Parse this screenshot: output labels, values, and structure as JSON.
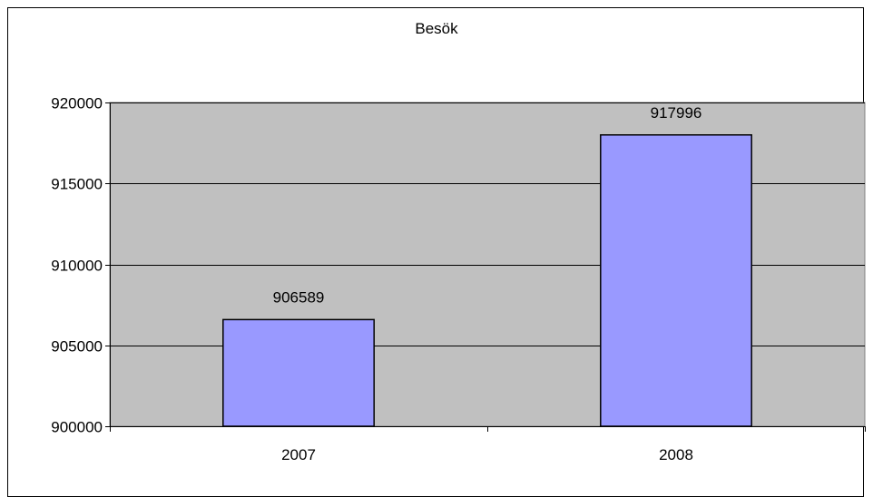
{
  "chart_data": {
    "type": "bar",
    "title": "Besök",
    "categories": [
      "2007",
      "2008"
    ],
    "values": [
      906589,
      917996
    ],
    "data_labels": [
      "906589",
      "917996"
    ],
    "ylim": [
      900000,
      920000
    ],
    "yticks": [
      900000,
      905000,
      910000,
      915000,
      920000
    ],
    "ytick_labels": [
      "900000",
      "905000",
      "910000",
      "915000",
      "920000"
    ],
    "xlabel": "",
    "ylabel": "",
    "grid": true,
    "legend": "none",
    "colors": {
      "bar_fill": "#9999ff",
      "bar_stroke": "#000000",
      "plot_background": "#c0c0c0",
      "gridline": "#000000"
    }
  }
}
